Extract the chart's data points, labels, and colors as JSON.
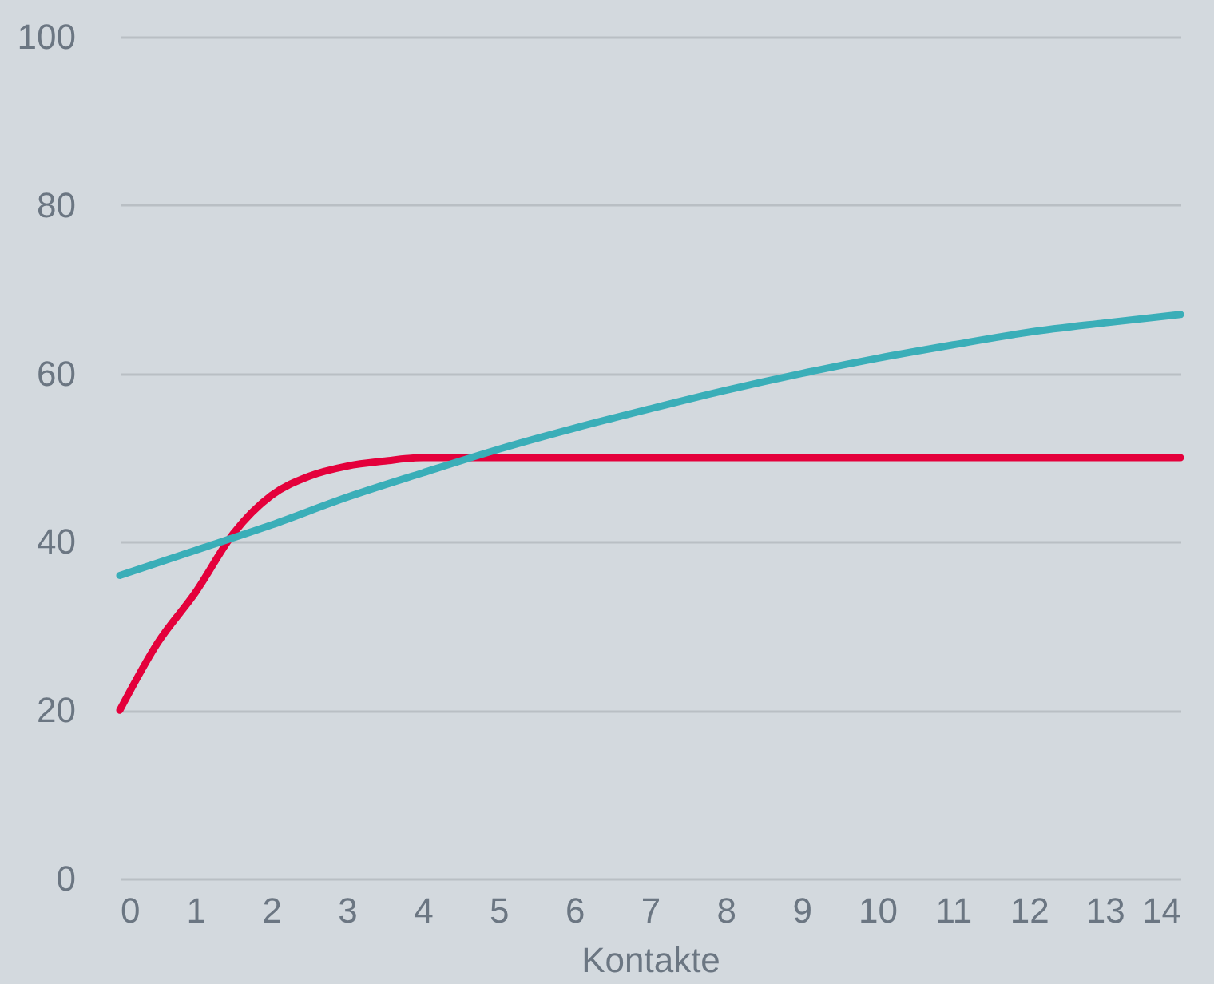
{
  "chart_data": {
    "type": "line",
    "xlabel": "Kontakte",
    "xlim": [
      0,
      14
    ],
    "xticks": [
      0,
      1,
      2,
      3,
      4,
      5,
      6,
      7,
      8,
      9,
      10,
      11,
      12,
      13,
      14
    ],
    "ylim": [
      0,
      100
    ],
    "yticks": [
      0,
      20,
      40,
      60,
      80,
      100
    ],
    "grid": "y",
    "marker": "none",
    "line_style": "solid",
    "series": [
      {
        "color": "#e4003b",
        "x": [
          0,
          0.5,
          1,
          1.5,
          2,
          2.5,
          3,
          3.5,
          4,
          5,
          6,
          7,
          8,
          9,
          10,
          11,
          12,
          13,
          14
        ],
        "values": [
          20,
          28,
          34,
          41,
          45.5,
          47.8,
          49,
          49.6,
          50,
          50,
          50,
          50,
          50,
          50,
          50,
          50,
          50,
          50,
          50
        ]
      },
      {
        "color": "#3aaeb8",
        "x": [
          0,
          1,
          2,
          3,
          4,
          5,
          6,
          7,
          8,
          9,
          10,
          11,
          12,
          13,
          14
        ],
        "values": [
          36,
          39,
          42,
          45.3,
          48.2,
          51,
          53.5,
          55.8,
          58,
          60,
          61.8,
          63.4,
          64.9,
          66,
          67
        ]
      }
    ]
  }
}
